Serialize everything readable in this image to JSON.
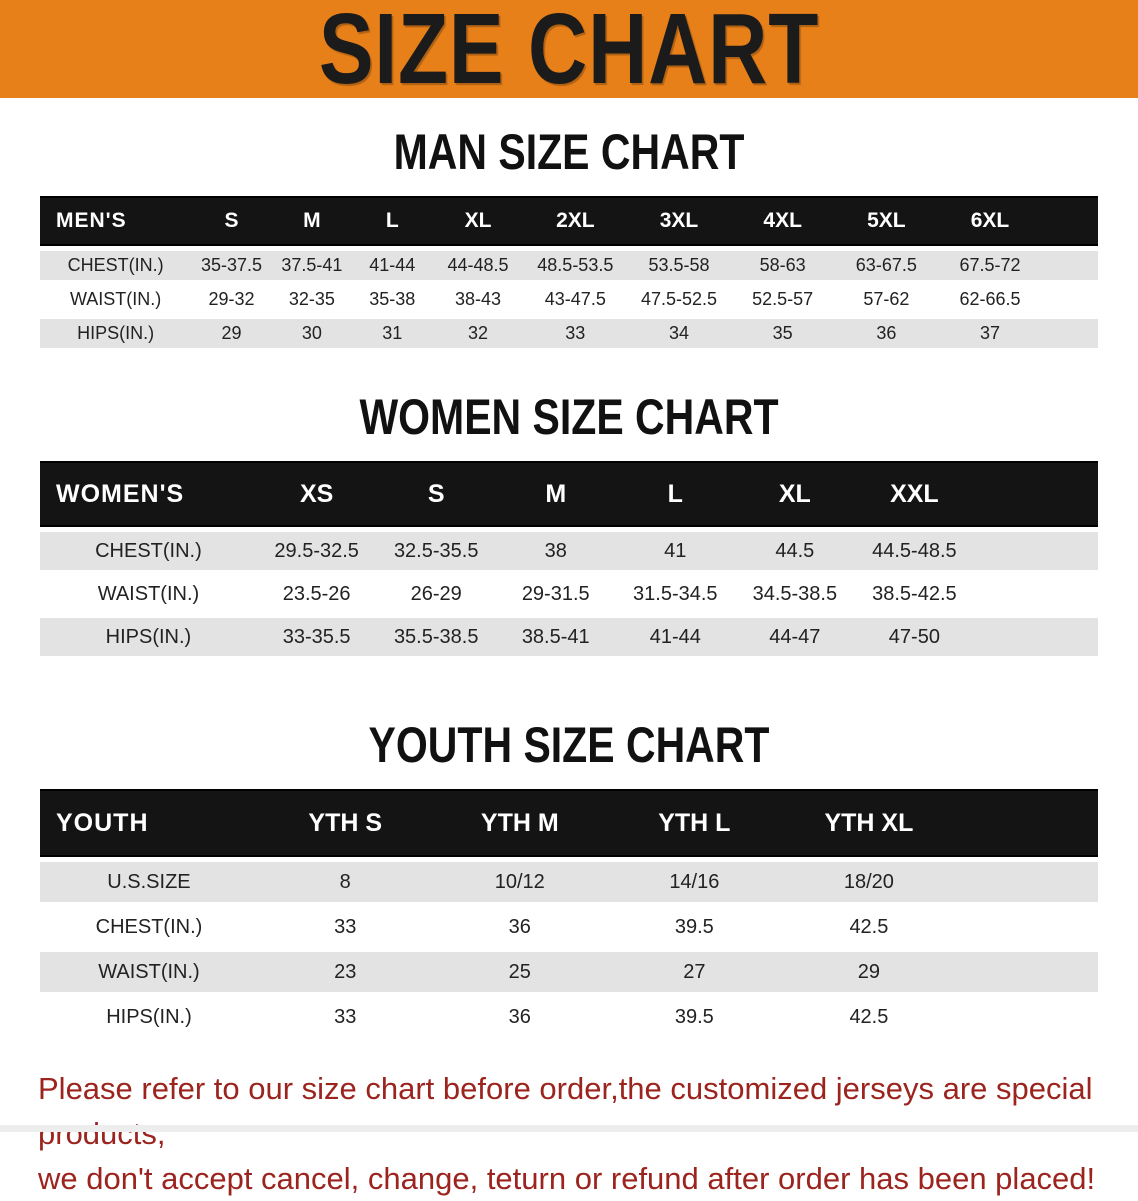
{
  "banner": {
    "title": "SIZE CHART"
  },
  "sections": [
    {
      "title": "MAN SIZE CHART",
      "header_label": "MEN'S",
      "columns": [
        "S",
        "M",
        "L",
        "XL",
        "2XL",
        "3XL",
        "4XL",
        "5XL",
        "6XL"
      ],
      "rows": [
        {
          "label": "CHEST(IN.)",
          "values": [
            "35-37.5",
            "37.5-41",
            "41-44",
            "44-48.5",
            "48.5-53.5",
            "53.5-58",
            "58-63",
            "63-67.5",
            "67.5-72"
          ]
        },
        {
          "label": "WAIST(IN.)",
          "values": [
            "29-32",
            "32-35",
            "35-38",
            "38-43",
            "43-47.5",
            "47.5-52.5",
            "52.5-57",
            "57-62",
            "62-66.5"
          ]
        },
        {
          "label": "HIPS(IN.)",
          "values": [
            "29",
            "30",
            "31",
            "32",
            "33",
            "34",
            "35",
            "36",
            "37"
          ]
        }
      ]
    },
    {
      "title": "WOMEN SIZE CHART",
      "header_label": "WOMEN'S",
      "columns": [
        "XS",
        "S",
        "M",
        "L",
        "XL",
        "XXL"
      ],
      "rows": [
        {
          "label": "CHEST(IN.)",
          "values": [
            "29.5-32.5",
            "32.5-35.5",
            "38",
            "41",
            "44.5",
            "44.5-48.5"
          ]
        },
        {
          "label": "WAIST(IN.)",
          "values": [
            "23.5-26",
            "26-29",
            "29-31.5",
            "31.5-34.5",
            "34.5-38.5",
            "38.5-42.5"
          ]
        },
        {
          "label": "HIPS(IN.)",
          "values": [
            "33-35.5",
            "35.5-38.5",
            "38.5-41",
            "41-44",
            "44-47",
            "47-50"
          ]
        }
      ]
    },
    {
      "title": "YOUTH SIZE CHART",
      "header_label": "YOUTH",
      "columns": [
        "YTH S",
        "YTH M",
        "YTH L",
        "YTH XL"
      ],
      "rows": [
        {
          "label": "U.S.SIZE",
          "values": [
            "8",
            "10/12",
            "14/16",
            "18/20"
          ]
        },
        {
          "label": "CHEST(IN.)",
          "values": [
            "33",
            "36",
            "39.5",
            "42.5"
          ]
        },
        {
          "label": "WAIST(IN.)",
          "values": [
            "23",
            "25",
            "27",
            "29"
          ]
        },
        {
          "label": "HIPS(IN.)",
          "values": [
            "33",
            "36",
            "39.5",
            "42.5"
          ]
        }
      ]
    }
  ],
  "footer": {
    "line1": "Please refer to our size chart before order,the customized jerseys are special products,",
    "line2": "we don't accept cancel, change, teturn or refund after order has been placed!"
  },
  "colors": {
    "banner_bg": "#E8801A",
    "banner_text": "#1B1B1B",
    "table_header_bg": "#141414",
    "table_header_text": "#FFFFFF",
    "striped_row_bg": "#E3E3E3",
    "data_text": "#222222",
    "footer_text": "#9C241E"
  }
}
